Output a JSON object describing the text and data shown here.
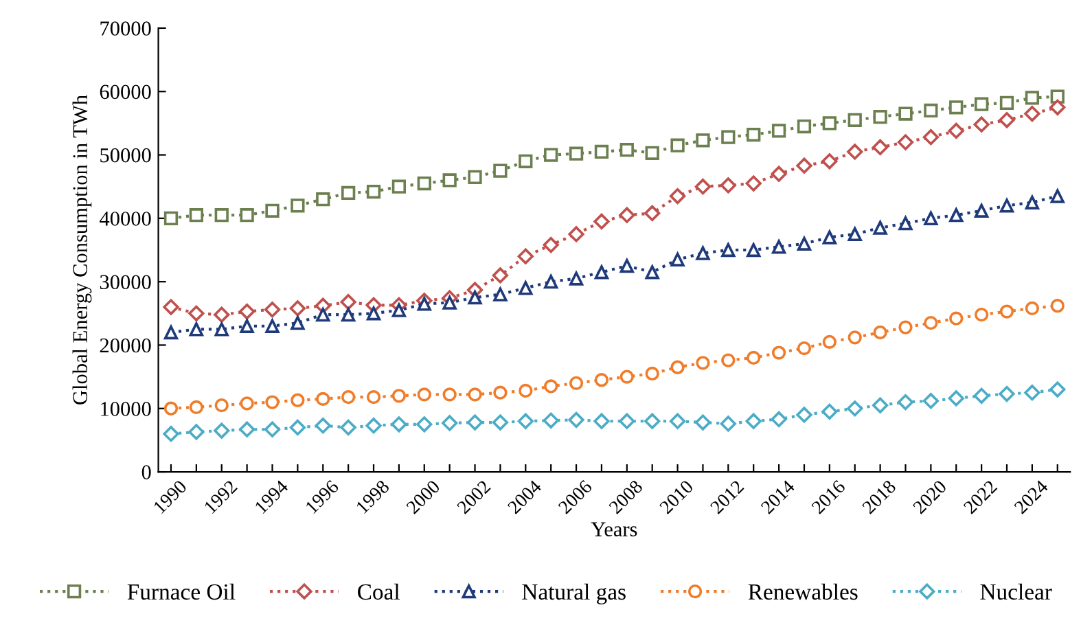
{
  "chart_data": {
    "type": "line",
    "xlabel": "Years",
    "ylabel": "Global Energy Consumption in TWh",
    "x": [
      1990,
      1991,
      1992,
      1993,
      1994,
      1995,
      1996,
      1997,
      1998,
      1999,
      2000,
      2001,
      2002,
      2003,
      2004,
      2005,
      2006,
      2007,
      2008,
      2009,
      2010,
      2011,
      2012,
      2013,
      2014,
      2015,
      2016,
      2017,
      2018,
      2019,
      2020,
      2021,
      2022,
      2023,
      2024,
      2025
    ],
    "xlim": [
      1989.5,
      2025.5
    ],
    "xticks": [
      1990,
      {
        "value": 1991,
        "label": null
      },
      1992,
      {
        "value": 1993,
        "label": null
      },
      1994,
      {
        "value": 1995,
        "label": null
      },
      1996,
      {
        "value": 1997,
        "label": null
      },
      1998,
      {
        "value": 1999,
        "label": null
      },
      2000,
      {
        "value": 2001,
        "label": null
      },
      2002,
      {
        "value": 2003,
        "label": null
      },
      2004,
      {
        "value": 2005,
        "label": null
      },
      2006,
      {
        "value": 2007,
        "label": null
      },
      2008,
      {
        "value": 2009,
        "label": null
      },
      2010,
      {
        "value": 2011,
        "label": null
      },
      2012,
      {
        "value": 2013,
        "label": null
      },
      2014,
      {
        "value": 2015,
        "label": null
      },
      2016,
      {
        "value": 2017,
        "label": null
      },
      2018,
      {
        "value": 2019,
        "label": null
      },
      2020,
      {
        "value": 2021,
        "label": null
      },
      2022,
      {
        "value": 2023,
        "label": null
      },
      2024,
      {
        "value": 2025,
        "label": null
      }
    ],
    "ylim": [
      0,
      70000
    ],
    "yticks": [
      0,
      10000,
      20000,
      30000,
      40000,
      50000,
      60000,
      70000
    ],
    "grid": false,
    "legend": "bottom",
    "line_style": "dotted",
    "series": [
      {
        "name": "Furnace Oil",
        "color": "#6b7f4f",
        "marker": "square",
        "values": [
          40000,
          40500,
          40500,
          40500,
          41200,
          42000,
          43000,
          44000,
          44200,
          45000,
          45500,
          46000,
          46500,
          47500,
          49000,
          50000,
          50200,
          50500,
          50800,
          50300,
          51500,
          52300,
          52800,
          53200,
          53800,
          54500,
          55000,
          55500,
          56000,
          56500,
          57000,
          57500,
          58000,
          58200,
          59000,
          59200
        ]
      },
      {
        "name": "Coal",
        "color": "#c0504d",
        "marker": "diamond",
        "values": [
          26000,
          25000,
          24800,
          25300,
          25600,
          25800,
          26200,
          26800,
          26300,
          26300,
          27000,
          27400,
          28700,
          31000,
          34000,
          35800,
          37500,
          39500,
          40500,
          40800,
          43500,
          45000,
          45200,
          45500,
          47000,
          48300,
          49000,
          50500,
          51200,
          52000,
          52800,
          53800,
          54800,
          55500,
          56500,
          57500
        ]
      },
      {
        "name": "Natural gas",
        "color": "#1f3a7a",
        "marker": "triangle",
        "values": [
          22000,
          22500,
          22500,
          23000,
          23000,
          23500,
          24800,
          24800,
          25000,
          25500,
          26500,
          26700,
          27500,
          28000,
          29000,
          30000,
          30500,
          31500,
          32500,
          31500,
          33500,
          34500,
          35000,
          35000,
          35500,
          36000,
          37000,
          37500,
          38500,
          39200,
          40000,
          40500,
          41200,
          42000,
          42500,
          43500
        ]
      },
      {
        "name": "Renewables",
        "color": "#f07c2a",
        "marker": "circle",
        "values": [
          10000,
          10200,
          10500,
          10800,
          11000,
          11300,
          11500,
          11800,
          11800,
          12000,
          12200,
          12200,
          12200,
          12500,
          12800,
          13500,
          14000,
          14500,
          15000,
          15500,
          16500,
          17200,
          17600,
          18000,
          18800,
          19500,
          20500,
          21200,
          22000,
          22800,
          23500,
          24200,
          24800,
          25300,
          25800,
          26200
        ]
      },
      {
        "name": "Nuclear",
        "color": "#4bacc6",
        "marker": "diamond",
        "values": [
          6000,
          6300,
          6500,
          6700,
          6700,
          7000,
          7300,
          7000,
          7300,
          7500,
          7500,
          7700,
          7800,
          7800,
          8000,
          8100,
          8200,
          8000,
          8000,
          8000,
          8000,
          7800,
          7600,
          8000,
          8300,
          9000,
          9500,
          10000,
          10500,
          11000,
          11200,
          11600,
          12000,
          12300,
          12500,
          13000
        ]
      }
    ]
  }
}
